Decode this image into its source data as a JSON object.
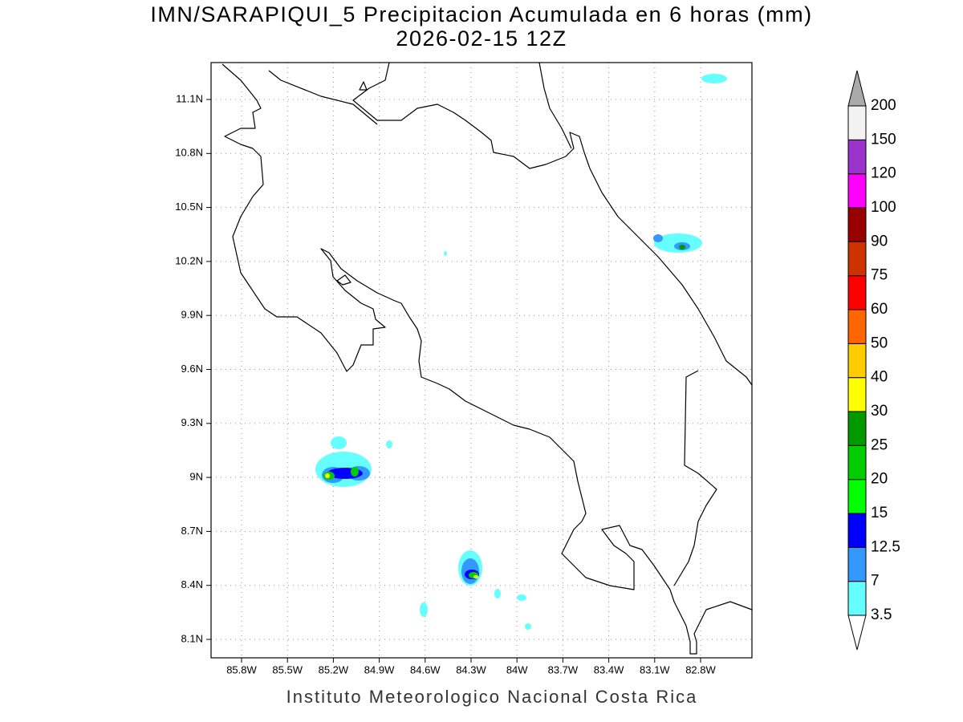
{
  "title": "IMN/SARAPIQUI_5 Precipitacion Acumulada en 6 horas (mm)",
  "subtitle": "2026-02-15 12Z",
  "footer": "Instituto Meteorologico Nacional Costa Rica",
  "map": {
    "lon_labels": [
      "85.8W",
      "85.5W",
      "85.2W",
      "84.9W",
      "84.6W",
      "84.3W",
      "84W",
      "83.7W",
      "83.4W",
      "83.1W",
      "82.8W"
    ],
    "lat_labels": [
      "8.1N",
      "8.4N",
      "8.7N",
      "9N",
      "9.3N",
      "9.6N",
      "9.9N",
      "10.2N",
      "10.5N",
      "10.8N",
      "11.1N"
    ],
    "grid": true
  },
  "colorbar": {
    "labels": [
      "3.5",
      "7",
      "12.5",
      "15",
      "20",
      "25",
      "30",
      "40",
      "50",
      "60",
      "75",
      "90",
      "100",
      "120",
      "150",
      "200"
    ],
    "colors": [
      "#66ffff",
      "#3399ff",
      "#0000ff",
      "#00ff00",
      "#00cc00",
      "#009900",
      "#ffff00",
      "#ffcc00",
      "#ff6600",
      "#ff0000",
      "#cc3300",
      "#990000",
      "#ff00ff",
      "#9933cc",
      "#f2f2f2"
    ],
    "under_color": "#ffffff",
    "over_color": "#aaaaaa"
  }
}
